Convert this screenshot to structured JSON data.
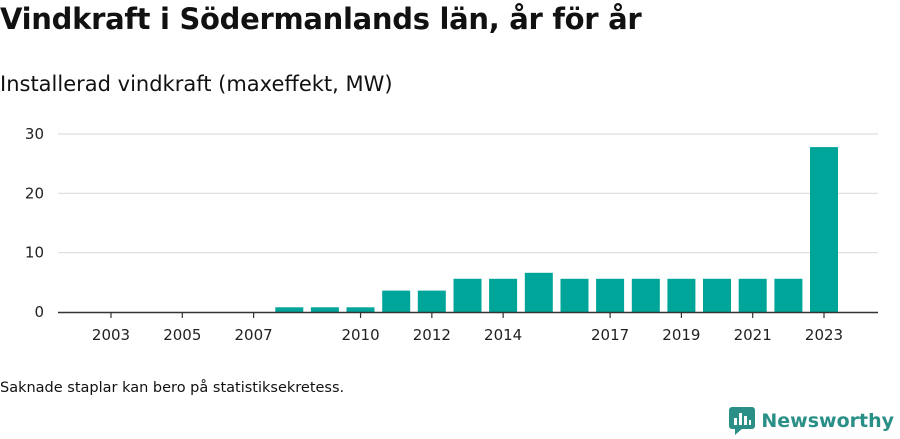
{
  "title": "Vindkraft i Södermanlands län, år för år",
  "subtitle": "Installerad vindkraft (maxeffekt, MW)",
  "footnote": "Saknade staplar kan bero på statistiksekretess.",
  "brand": {
    "name": "Newsworthy",
    "icon": "newsworthy-logo-icon",
    "color": "#2a8f86"
  },
  "colors": {
    "bar": "#00a59a",
    "grid": "#dddddd",
    "axis": "#333333"
  },
  "chart_data": {
    "type": "bar",
    "categories": [
      "2003",
      "2004",
      "2005",
      "2006",
      "2007",
      "2008",
      "2009",
      "2010",
      "2011",
      "2012",
      "2013",
      "2014",
      "2015",
      "2016",
      "2017",
      "2018",
      "2019",
      "2020",
      "2021",
      "2022",
      "2023"
    ],
    "values": [
      0,
      0,
      0,
      0,
      0,
      0.8,
      0.8,
      0.8,
      3.6,
      3.6,
      5.6,
      5.6,
      6.6,
      5.6,
      5.6,
      5.6,
      5.6,
      5.6,
      5.6,
      5.6,
      27.8
    ],
    "x_tick_labels": [
      "2003",
      "2005",
      "2007",
      "2010",
      "2012",
      "2014",
      "2017",
      "2019",
      "2021",
      "2023"
    ],
    "y_ticks": [
      "0",
      "10",
      "20",
      "30"
    ],
    "ylim": [
      0,
      30
    ],
    "xlabel": "",
    "ylabel": "",
    "grid": true,
    "legend": "none"
  }
}
